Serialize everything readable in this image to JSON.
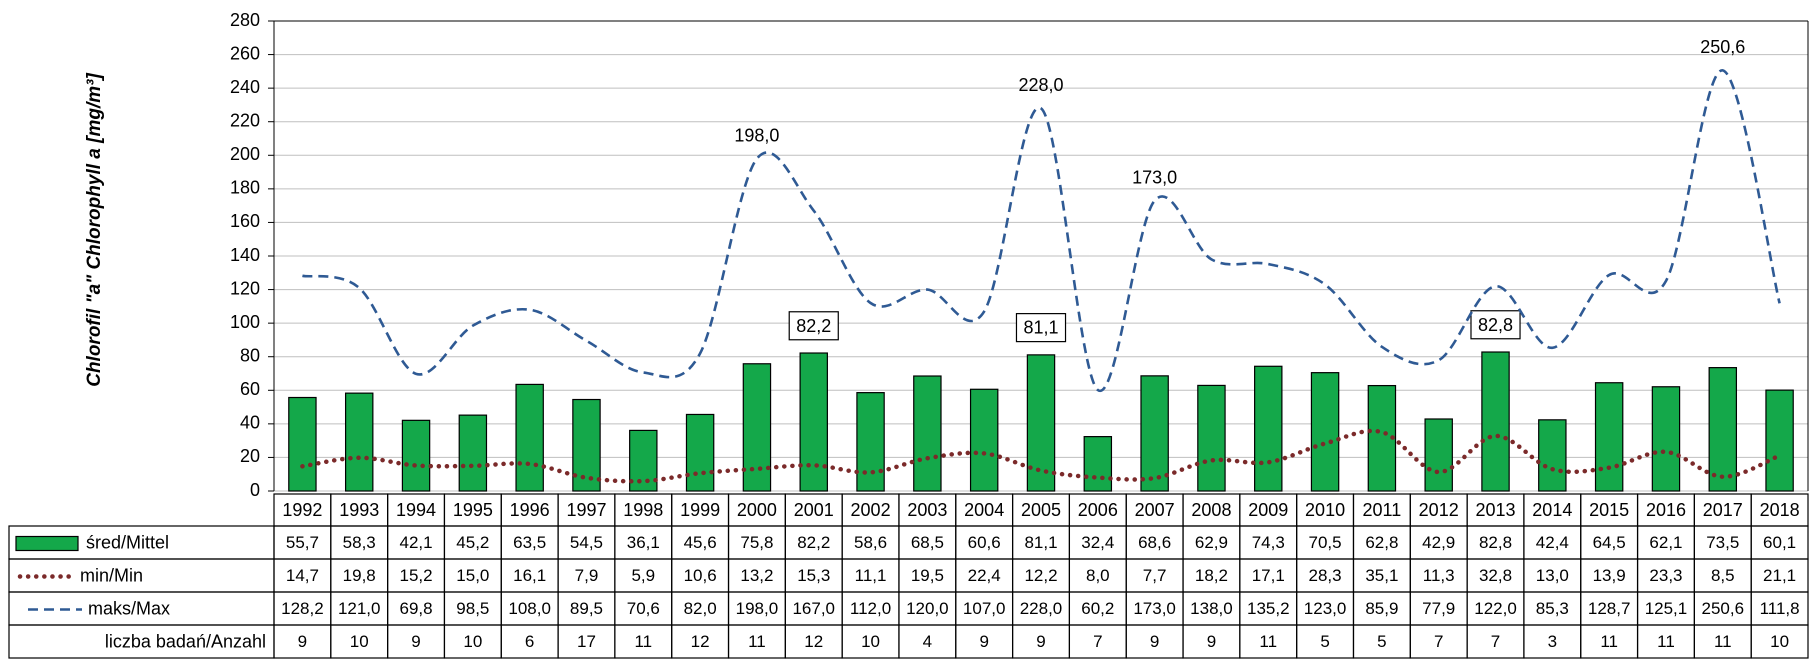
{
  "chart_data": {
    "type": "bar_line_table",
    "y_label": "Chlorofil \"a\" Chlorophyll a [mg/m³]",
    "categories": [
      "1992",
      "1993",
      "1994",
      "1995",
      "1996",
      "1997",
      "1998",
      "1999",
      "2000",
      "2001",
      "2002",
      "2003",
      "2004",
      "2005",
      "2006",
      "2007",
      "2008",
      "2009",
      "2010",
      "2011",
      "2012",
      "2013",
      "2014",
      "2015",
      "2016",
      "2017",
      "2018"
    ],
    "ylim": [
      0,
      280
    ],
    "yticks": [
      0,
      20,
      40,
      60,
      80,
      100,
      120,
      140,
      160,
      180,
      200,
      220,
      240,
      260,
      280
    ],
    "grid": true,
    "series": [
      {
        "name": "śred/Mittel",
        "type": "bar",
        "color": "#14a84a",
        "values": [
          55.7,
          58.3,
          42.1,
          45.2,
          63.5,
          54.5,
          36.1,
          45.6,
          75.8,
          82.2,
          58.6,
          68.5,
          60.6,
          81.1,
          32.4,
          68.6,
          62.9,
          74.3,
          70.5,
          62.8,
          42.9,
          82.8,
          42.4,
          64.5,
          62.1,
          73.5,
          60.1
        ],
        "value_labels": [
          "55,7",
          "58,3",
          "42,1",
          "45,2",
          "63,5",
          "54,5",
          "36,1",
          "45,6",
          "75,8",
          "82,2",
          "58,6",
          "68,5",
          "60,6",
          "81,1",
          "32,4",
          "68,6",
          "62,9",
          "74,3",
          "70,5",
          "62,8",
          "42,9",
          "82,8",
          "42,4",
          "64,5",
          "62,1",
          "73,5",
          "60,1"
        ]
      },
      {
        "name": "min/Min",
        "type": "line",
        "style": "dotted",
        "color": "#7b2a2a",
        "values": [
          14.7,
          19.8,
          15.2,
          15.0,
          16.1,
          7.9,
          5.9,
          10.6,
          13.2,
          15.3,
          11.1,
          19.5,
          22.4,
          12.2,
          8.0,
          7.7,
          18.2,
          17.1,
          28.3,
          35.1,
          11.3,
          32.8,
          13.0,
          13.9,
          23.3,
          8.5,
          21.1
        ],
        "value_labels": [
          "14,7",
          "19,8",
          "15,2",
          "15,0",
          "16,1",
          "7,9",
          "5,9",
          "10,6",
          "13,2",
          "15,3",
          "11,1",
          "19,5",
          "22,4",
          "12,2",
          "8,0",
          "7,7",
          "18,2",
          "17,1",
          "28,3",
          "35,1",
          "11,3",
          "32,8",
          "13,0",
          "13,9",
          "23,3",
          "8,5",
          "21,1"
        ]
      },
      {
        "name": "maks/Max",
        "type": "line",
        "style": "dashed",
        "color": "#2f5a94",
        "values": [
          128.2,
          121.0,
          69.8,
          98.5,
          108.0,
          89.5,
          70.6,
          82.0,
          198.0,
          167.0,
          112.0,
          120.0,
          107.0,
          228.0,
          60.2,
          173.0,
          138.0,
          135.2,
          123.0,
          85.9,
          77.9,
          122.0,
          85.3,
          128.7,
          125.1,
          250.6,
          111.8
        ],
        "value_labels": [
          "128,2",
          "121,0",
          "69,8",
          "98,5",
          "108,0",
          "89,5",
          "70,6",
          "82,0",
          "198,0",
          "167,0",
          "112,0",
          "120,0",
          "107,0",
          "228,0",
          "60,2",
          "173,0",
          "138,0",
          "135,2",
          "123,0",
          "85,9",
          "77,9",
          "122,0",
          "85,3",
          "128,7",
          "125,1",
          "250,6",
          "111,8"
        ]
      }
    ],
    "counts": {
      "name": "liczba badań/Anzahl",
      "values": [
        9,
        10,
        9,
        10,
        6,
        17,
        11,
        12,
        11,
        12,
        10,
        4,
        9,
        9,
        7,
        9,
        9,
        11,
        5,
        5,
        7,
        7,
        3,
        11,
        11,
        11,
        10
      ]
    }
  }
}
